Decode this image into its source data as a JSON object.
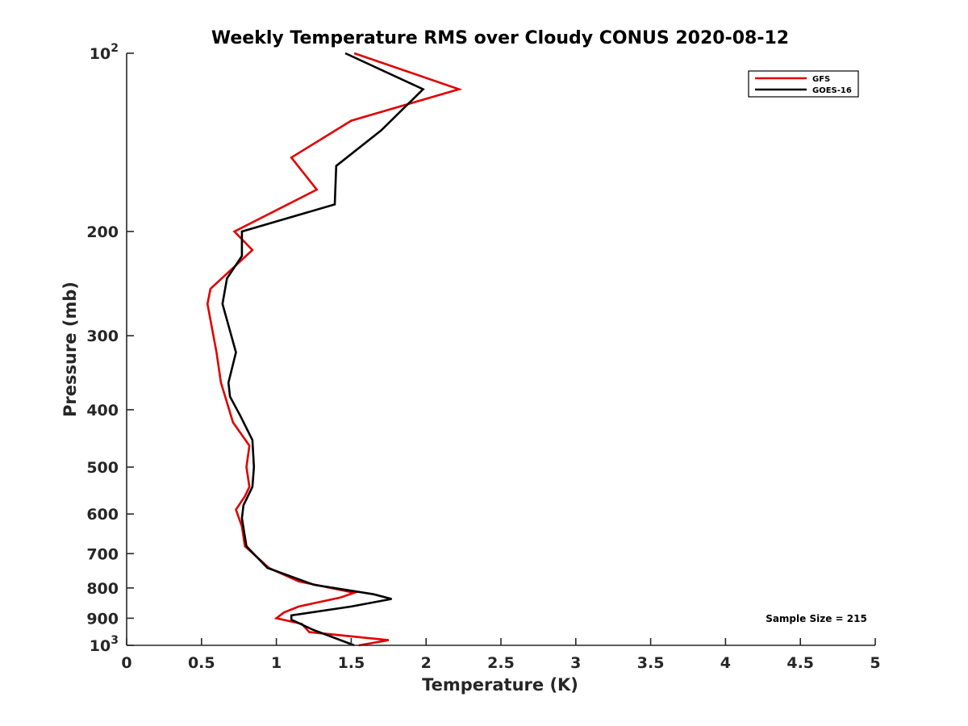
{
  "chart_data": {
    "type": "line",
    "title": "Weekly Temperature RMS over Cloudy CONUS 2020-08-12",
    "xlabel": "Temperature (K)",
    "ylabel": "Pressure (mb)",
    "xlim": [
      0,
      5
    ],
    "ylim": [
      100,
      1000
    ],
    "yscale": "log",
    "yreversed": true,
    "x_ticks": [
      0,
      0.5,
      1,
      1.5,
      2,
      2.5,
      3,
      3.5,
      4,
      4.5,
      5
    ],
    "x_tick_labels": [
      "0",
      "0.5",
      "1",
      "1.5",
      "2",
      "2.5",
      "3",
      "3.5",
      "4",
      "4.5",
      "5"
    ],
    "y_ticks": [
      {
        "value": 100,
        "label": "10",
        "sup": "2"
      },
      {
        "value": 200,
        "label": "200",
        "sup": ""
      },
      {
        "value": 300,
        "label": "300",
        "sup": ""
      },
      {
        "value": 400,
        "label": "400",
        "sup": ""
      },
      {
        "value": 500,
        "label": "500",
        "sup": ""
      },
      {
        "value": 600,
        "label": "600",
        "sup": ""
      },
      {
        "value": 700,
        "label": "700",
        "sup": ""
      },
      {
        "value": 800,
        "label": "800",
        "sup": ""
      },
      {
        "value": 900,
        "label": "900",
        "sup": ""
      },
      {
        "value": 1000,
        "label": "10",
        "sup": "3"
      }
    ],
    "grid": false,
    "legend_position": "top-right",
    "annotation": "Sample Size = 215",
    "series": [
      {
        "name": "GFS",
        "color": "#e00000",
        "points": [
          [
            1.52,
            100
          ],
          [
            2.22,
            115
          ],
          [
            1.5,
            130
          ],
          [
            1.1,
            150
          ],
          [
            1.27,
            170
          ],
          [
            0.72,
            200
          ],
          [
            0.84,
            215
          ],
          [
            0.56,
            250
          ],
          [
            0.54,
            265
          ],
          [
            0.6,
            320
          ],
          [
            0.63,
            360
          ],
          [
            0.71,
            420
          ],
          [
            0.82,
            460
          ],
          [
            0.8,
            500
          ],
          [
            0.82,
            540
          ],
          [
            0.79,
            560
          ],
          [
            0.73,
            590
          ],
          [
            0.77,
            630
          ],
          [
            0.79,
            680
          ],
          [
            0.95,
            740
          ],
          [
            1.15,
            780
          ],
          [
            1.52,
            815
          ],
          [
            1.43,
            830
          ],
          [
            1.15,
            860
          ],
          [
            1.05,
            880
          ],
          [
            1.0,
            900
          ],
          [
            1.17,
            920
          ],
          [
            1.22,
            950
          ],
          [
            1.75,
            980
          ],
          [
            1.55,
            1000
          ]
        ]
      },
      {
        "name": "GOES-16",
        "color": "#000000",
        "points": [
          [
            1.46,
            100
          ],
          [
            1.98,
            115
          ],
          [
            1.7,
            135
          ],
          [
            1.4,
            155
          ],
          [
            1.39,
            180
          ],
          [
            0.77,
            200
          ],
          [
            0.77,
            220
          ],
          [
            0.67,
            240
          ],
          [
            0.64,
            265
          ],
          [
            0.73,
            320
          ],
          [
            0.68,
            360
          ],
          [
            0.69,
            380
          ],
          [
            0.76,
            410
          ],
          [
            0.84,
            450
          ],
          [
            0.85,
            500
          ],
          [
            0.84,
            540
          ],
          [
            0.78,
            580
          ],
          [
            0.77,
            610
          ],
          [
            0.8,
            680
          ],
          [
            0.94,
            740
          ],
          [
            1.25,
            790
          ],
          [
            1.65,
            820
          ],
          [
            1.77,
            835
          ],
          [
            1.5,
            860
          ],
          [
            1.1,
            890
          ],
          [
            1.1,
            905
          ],
          [
            1.24,
            940
          ],
          [
            1.52,
            1000
          ]
        ]
      }
    ]
  }
}
